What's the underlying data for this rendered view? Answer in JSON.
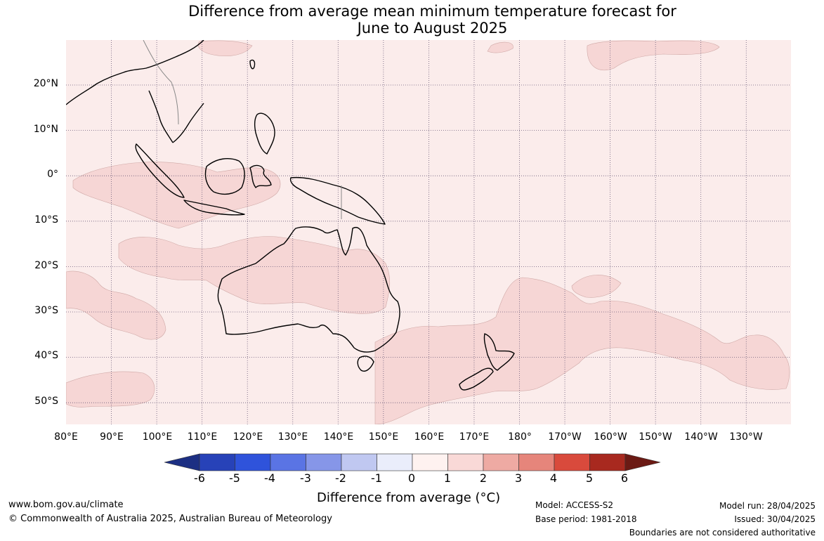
{
  "title": {
    "line1": "Difference from average mean minimum temperature forecast for",
    "line2": "June to August 2025"
  },
  "map": {
    "lat_labels": [
      "20°N",
      "10°N",
      "0°",
      "10°S",
      "20°S",
      "30°S",
      "40°S",
      "50°S"
    ],
    "lon_labels": [
      "80°E",
      "90°E",
      "100°E",
      "110°E",
      "120°E",
      "130°E",
      "140°E",
      "150°E",
      "160°E",
      "170°E",
      "180°",
      "170°W",
      "160°W",
      "150°W",
      "140°W",
      "130°W"
    ],
    "background_color": "#fbeceb",
    "anomaly_1_to_2_color": "#f6d6d5",
    "coastline_color": "#000000",
    "border_color": "#888888"
  },
  "colorbar": {
    "ticks": [
      "-6",
      "-5",
      "-4",
      "-3",
      "-2",
      "-1",
      "0",
      "1",
      "2",
      "3",
      "4",
      "5",
      "6"
    ],
    "colors": [
      "#1c2f83",
      "#2742b8",
      "#2f53db",
      "#5a74e4",
      "#8696e8",
      "#c0c8f1",
      "#eaedfb",
      "#fef2f0",
      "#f9d9d7",
      "#eeaaa3",
      "#e6857b",
      "#d94a3c",
      "#a8291f",
      "#6b1a14"
    ],
    "title": "Difference from average (°C)"
  },
  "footer": {
    "website": "www.bom.gov.au/climate",
    "copyright": "© Commonwealth of Australia 2025, Australian Bureau of Meteorology",
    "model": "Model: ACCESS-S2",
    "base_period": "Base period: 1981-2018",
    "model_run": "Model run: 28/04/2025",
    "issued": "Issued: 30/04/2025",
    "disclaimer": "Boundaries are not considered authoritative"
  }
}
